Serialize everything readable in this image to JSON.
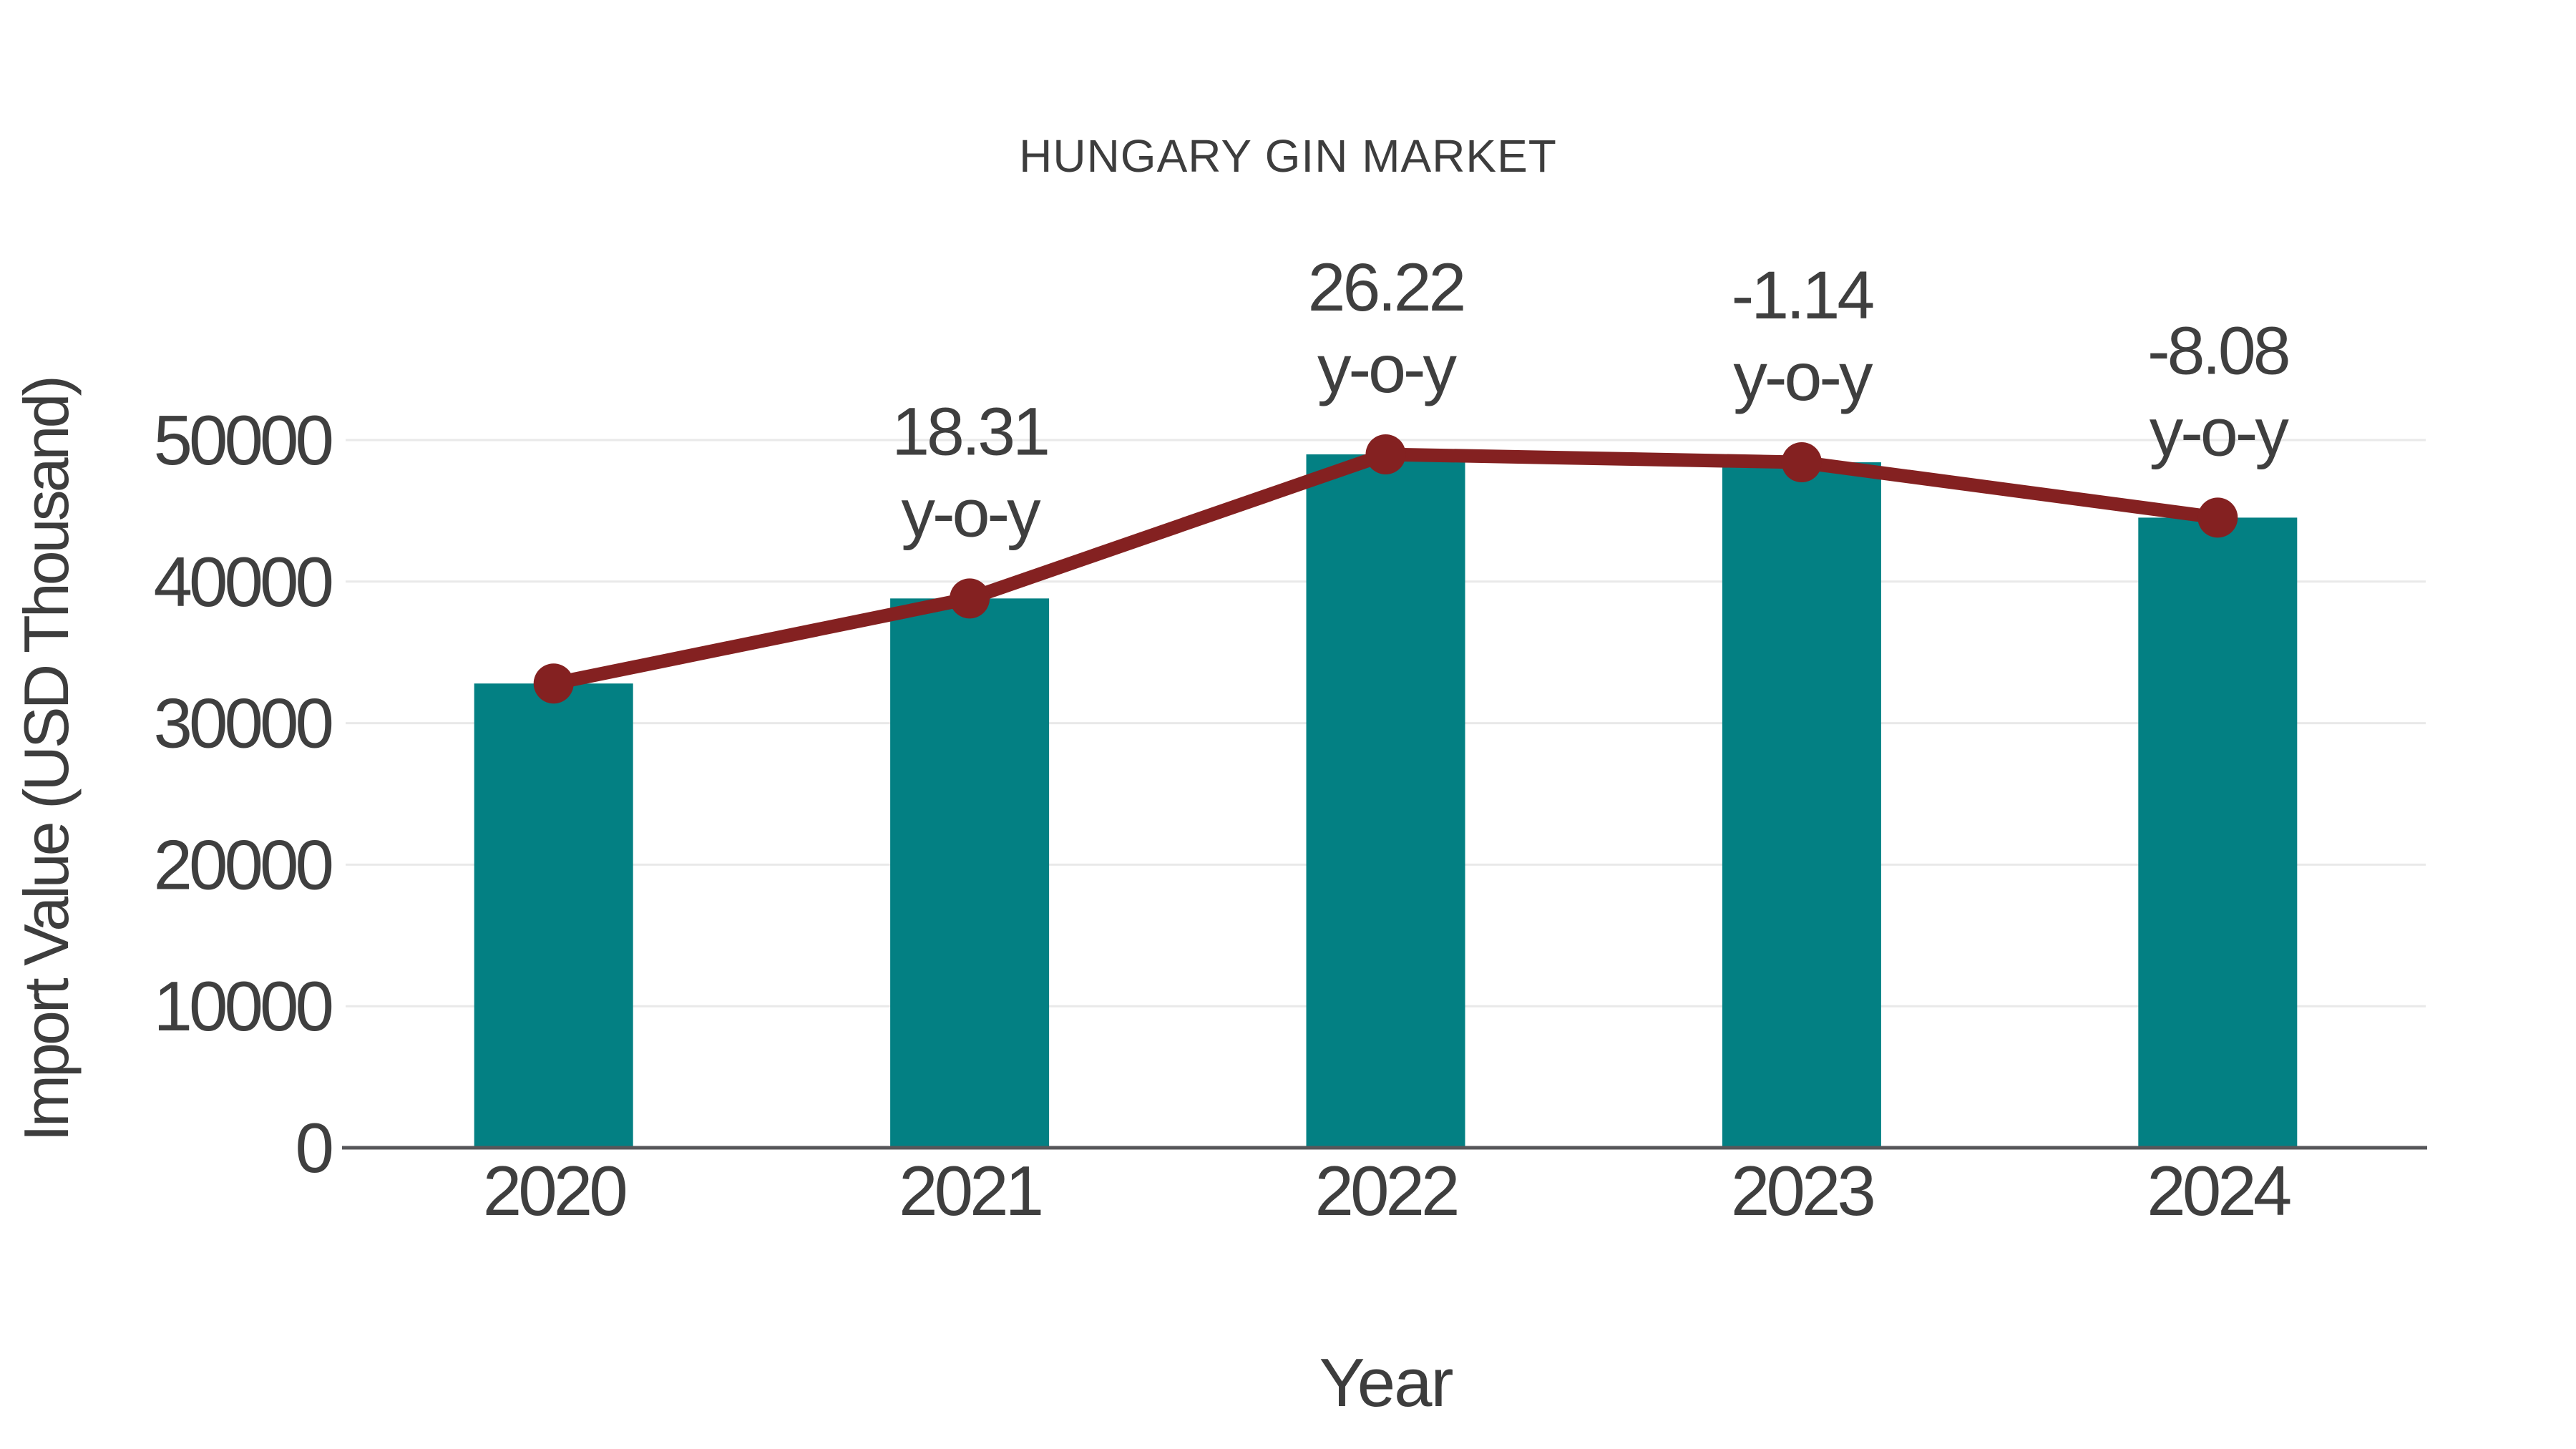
{
  "title": "HUNGARY GIN MARKET",
  "colors": {
    "background": "#ffffff",
    "bar": "#038083",
    "line": "#842121",
    "marker": "#842121",
    "title_text": "#3d3d3d",
    "tick_text": "#3f3f3f",
    "annotation_text": "#3f3f3f",
    "axis_line": "#57575a",
    "gridline": "#e9e9e9"
  },
  "chart_data": {
    "type": "bar+line",
    "title": "HUNGARY GIN MARKET",
    "xlabel": "Year",
    "ylabel": "Import Value (USD Thousand)",
    "categories": [
      "2020",
      "2021",
      "2022",
      "2023",
      "2024"
    ],
    "series": [
      {
        "name": "Import Value (USD Thousand)",
        "type": "bar",
        "color": "#038083",
        "values": [
          32800,
          38810,
          48990,
          48430,
          44520
        ]
      },
      {
        "name": "y-o-y growth marker line",
        "type": "line",
        "color": "#842121",
        "values": [
          32800,
          38810,
          48990,
          48430,
          44520
        ],
        "point_labels": [
          "",
          "18.31",
          "26.22",
          "-1.14",
          "-8.08"
        ]
      }
    ],
    "annotations": [
      {
        "category": "2021",
        "line1": "18.31",
        "line2": "y-o-y"
      },
      {
        "category": "2022",
        "line1": "26.22",
        "line2": "y-o-y"
      },
      {
        "category": "2023",
        "line1": "-1.14",
        "line2": "y-o-y"
      },
      {
        "category": "2024",
        "line1": "-8.08",
        "line2": "y-o-y"
      }
    ],
    "yticks": [
      0,
      10000,
      20000,
      30000,
      40000,
      50000
    ],
    "ylim": [
      0,
      50000
    ],
    "grid": "horizontal",
    "legend_position": "none",
    "note": "bar values estimated from axis; line/marker sits at bar tops"
  }
}
